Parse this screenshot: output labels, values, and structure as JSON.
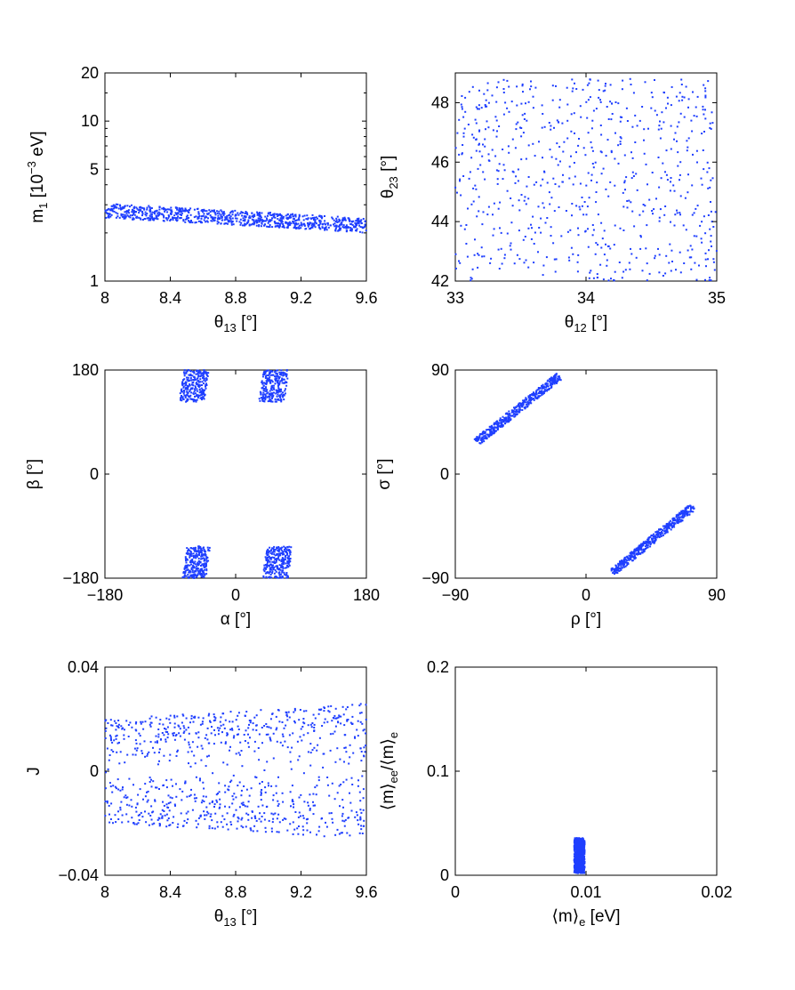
{
  "chart_data": [
    {
      "id": "p1",
      "type": "scatter",
      "xlabel": {
        "base": "θ",
        "sub": "13",
        "rest": " [°]"
      },
      "ylabel": {
        "base": "m",
        "sub": "1",
        "mid": " [10",
        "sup": "−3",
        "rest": " eV]"
      },
      "xlim": [
        8,
        9.6
      ],
      "ylim": [
        1,
        20
      ],
      "yscale": "log",
      "xticks": [
        8,
        8.4,
        8.8,
        9.2,
        9.6
      ],
      "xtick_labels": [
        "8",
        "8.4",
        "8.8",
        "9.2",
        "9.6"
      ],
      "yticks": [
        1,
        5,
        10,
        20
      ],
      "ytick_labels": [
        "1",
        "5",
        "10",
        "20"
      ],
      "marker_color": "#1f3fff",
      "points_description": "band from m1≈2.7 at θ13=8 down to ≈2.2 at θ13=9.6",
      "band": {
        "x": [
          8,
          9.6
        ],
        "y_center": [
          2.75,
          2.22
        ],
        "y_halfwidth_log10": 0.045
      },
      "n_points": 900
    },
    {
      "id": "p2",
      "type": "scatter",
      "xlabel": {
        "base": "θ",
        "sub": "12",
        "rest": " [°]"
      },
      "ylabel": {
        "base": "θ",
        "sub": "23",
        "rest": " [°]"
      },
      "xlim": [
        33,
        35
      ],
      "ylim": [
        42,
        49
      ],
      "xticks": [
        33,
        34,
        35
      ],
      "xtick_labels": [
        "33",
        "34",
        "35"
      ],
      "yticks": [
        42,
        44,
        46,
        48
      ],
      "ytick_labels": [
        "42",
        "44",
        "46",
        "48"
      ],
      "marker_color": "#1f3fff",
      "region": {
        "x": [
          33,
          35
        ],
        "y": [
          42,
          48.8
        ]
      },
      "n_points": 700
    },
    {
      "id": "p3",
      "type": "scatter",
      "xlabel": {
        "base": "α",
        "rest": " [°]"
      },
      "ylabel": {
        "base": "β",
        "rest": " [°]"
      },
      "xlim": [
        -180,
        180
      ],
      "ylim": [
        -180,
        180
      ],
      "xticks": [
        -180,
        0,
        180
      ],
      "xtick_labels": [
        "−180",
        "0",
        "180"
      ],
      "yticks": [
        -180,
        0,
        180
      ],
      "ytick_labels": [
        "−180",
        "0",
        "180"
      ],
      "marker_color": "#1f3fff",
      "clusters": [
        {
          "x": [
            -75,
            -40
          ],
          "y": [
            125,
            180
          ]
        },
        {
          "x": [
            35,
            70
          ],
          "y": [
            125,
            180
          ]
        },
        {
          "x": [
            -70,
            -38
          ],
          "y": [
            -180,
            -125
          ]
        },
        {
          "x": [
            40,
            75
          ],
          "y": [
            -180,
            -125
          ]
        }
      ],
      "n_points_per_cluster": 260
    },
    {
      "id": "p4",
      "type": "scatter",
      "xlabel": {
        "base": "ρ",
        "rest": " [°]"
      },
      "ylabel": {
        "base": "σ",
        "rest": " [°]"
      },
      "xlim": [
        -90,
        90
      ],
      "ylim": [
        -90,
        90
      ],
      "xticks": [
        -90,
        0,
        90
      ],
      "xtick_labels": [
        "−90",
        "0",
        "90"
      ],
      "yticks": [
        -90,
        0,
        90
      ],
      "ytick_labels": [
        "−90",
        "0",
        "90"
      ],
      "marker_color": "#1f3fff",
      "bands": [
        {
          "x": [
            -75,
            -18
          ],
          "y": [
            28,
            85
          ],
          "halfwidth": 2.2
        },
        {
          "x": [
            18,
            74
          ],
          "y": [
            -85,
            -28
          ],
          "halfwidth": 2.2
        }
      ],
      "n_points_per_band": 450
    },
    {
      "id": "p5",
      "type": "scatter",
      "xlabel": {
        "base": "θ",
        "sub": "13",
        "rest": " [°]"
      },
      "ylabel": {
        "base": "J",
        "rest": ""
      },
      "xlim": [
        8,
        9.6
      ],
      "ylim": [
        -0.04,
        0.04
      ],
      "xticks": [
        8,
        8.4,
        8.8,
        9.2,
        9.6
      ],
      "xtick_labels": [
        "8",
        "8.4",
        "8.8",
        "9.2",
        "9.6"
      ],
      "yticks": [
        -0.04,
        0,
        0.04
      ],
      "ytick_labels": [
        "−0.04",
        "0",
        "0.04"
      ],
      "marker_color": "#1f3fff",
      "envelope": {
        "x": [
          8,
          9.6
        ],
        "jmax": [
          0.02,
          0.026
        ]
      },
      "n_points": 900
    },
    {
      "id": "p6",
      "type": "scatter",
      "xlabel": {
        "base": "⟨m⟩",
        "sub": "e",
        "rest": " [eV]"
      },
      "ylabel": {
        "base": "⟨m⟩",
        "sub": "ee",
        "mid": "/⟨m⟩",
        "sub2": "e",
        "rest": ""
      },
      "xlim": [
        0,
        0.02
      ],
      "ylim": [
        0,
        0.2
      ],
      "xticks": [
        0,
        0.01,
        0.02
      ],
      "xtick_labels": [
        "0",
        "0.01",
        "0.02"
      ],
      "yticks": [
        0,
        0.1,
        0.2
      ],
      "ytick_labels": [
        "0",
        "0.1",
        "0.2"
      ],
      "marker_color": "#1f3fff",
      "region": {
        "x": [
          0.0091,
          0.0099
        ],
        "y": [
          0.002,
          0.036
        ]
      },
      "n_points": 700
    }
  ]
}
